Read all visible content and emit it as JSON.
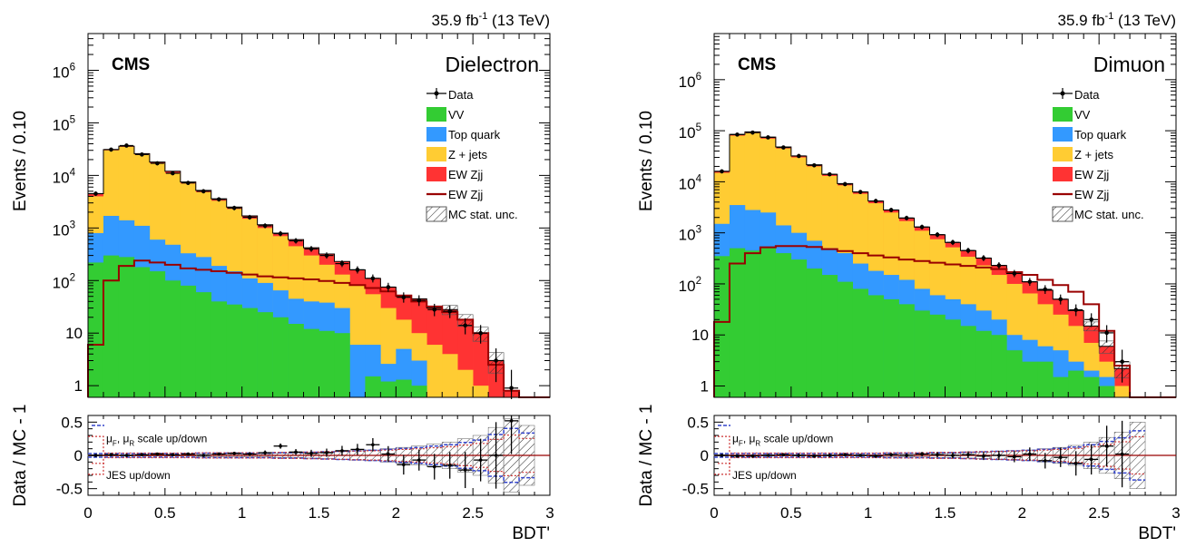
{
  "chart_data": [
    {
      "type": "bar",
      "panel": "left",
      "experiment": "CMS",
      "channel": "Dielectron",
      "lumi": "35.9 fb",
      "lumi_exp": "-1",
      "energy": "(13 TeV)",
      "ylabel": "Events / 0.10",
      "ratio_ylabel": "Data / MC - 1",
      "xlabel": "BDT'",
      "xlim": [
        0,
        3
      ],
      "ylim_log": [
        0.6,
        5000000
      ],
      "ratio_ylim": [
        -0.6,
        0.6
      ],
      "yticks": [
        {
          "v": 1,
          "t": "1"
        },
        {
          "v": 10,
          "t": "10"
        },
        {
          "v": 100,
          "b": "10",
          "e": "2"
        },
        {
          "v": 1000,
          "b": "10",
          "e": "3"
        },
        {
          "v": 10000,
          "b": "10",
          "e": "4"
        },
        {
          "v": 100000,
          "b": "10",
          "e": "5"
        },
        {
          "v": 1000000,
          "b": "10",
          "e": "6"
        }
      ],
      "xticks": [
        "0",
        "0.5",
        "1",
        "1.5",
        "2",
        "2.5",
        "3"
      ],
      "ratio_yticks": [
        "0.5",
        "0",
        "-0.5"
      ],
      "legend": [
        {
          "label": "Data",
          "kind": "data"
        },
        {
          "label": "VV",
          "kind": "fill",
          "color": "#33cc33"
        },
        {
          "label": "Top quark",
          "kind": "fill",
          "color": "#3399ff"
        },
        {
          "label": "Z + jets",
          "kind": "fill",
          "color": "#ffcc33"
        },
        {
          "label": "EW Zjj",
          "kind": "fill",
          "color": "#ff3333"
        },
        {
          "label": "EW Zjj",
          "kind": "line",
          "color": "#990000"
        },
        {
          "label": "MC stat. unc.",
          "kind": "hatch"
        }
      ],
      "ratio_annotations": {
        "scale": "μ",
        "scale_sub1": "F",
        "scale_mid": ", μ",
        "scale_sub2": "R",
        "scale_end": " scale up/down",
        "jes": "JES up/down"
      },
      "bin_edges": [
        0,
        0.1,
        0.2,
        0.3,
        0.4,
        0.5,
        0.6,
        0.7,
        0.8,
        0.9,
        1.0,
        1.1,
        1.2,
        1.3,
        1.4,
        1.5,
        1.6,
        1.7,
        1.8,
        1.9,
        2.0,
        2.1,
        2.2,
        2.3,
        2.4,
        2.5,
        2.6,
        2.7,
        2.8,
        2.9,
        3.0
      ],
      "stack_tops": {
        "VV": [
          220,
          300,
          280,
          180,
          150,
          100,
          80,
          60,
          40,
          35,
          30,
          25,
          20,
          15,
          12,
          11,
          10,
          0,
          1.5,
          1.2,
          1.3,
          1.0,
          0,
          0,
          0,
          0,
          0,
          0,
          0,
          0
        ],
        "Top quark": [
          800,
          1700,
          1400,
          1100,
          600,
          480,
          330,
          280,
          190,
          150,
          110,
          90,
          65,
          45,
          40,
          38,
          30,
          6,
          6,
          2.6,
          5,
          3,
          0,
          0,
          0,
          0,
          0,
          0,
          0,
          0
        ],
        "Z + jets": [
          4000,
          30000,
          35000,
          25000,
          17000,
          11000,
          7000,
          4800,
          3300,
          2300,
          1500,
          1000,
          700,
          450,
          300,
          200,
          130,
          80,
          55,
          30,
          18,
          10,
          6,
          4,
          2,
          1,
          0,
          0,
          0,
          0
        ],
        "EW Zjj": [
          4500,
          31000,
          36000,
          26000,
          18000,
          12000,
          7500,
          5200,
          3600,
          2500,
          1700,
          1150,
          800,
          600,
          420,
          320,
          230,
          160,
          110,
          75,
          50,
          45,
          30,
          28,
          18,
          10,
          3,
          0.8,
          0,
          0
        ]
      },
      "ewzjj_line": [
        6,
        100,
        190,
        240,
        220,
        200,
        170,
        160,
        150,
        140,
        130,
        120,
        115,
        110,
        105,
        98,
        90,
        82,
        72,
        62,
        52,
        40,
        32,
        25,
        18,
        10,
        2.5,
        0.8,
        0,
        0
      ],
      "data": [
        4500,
        31000,
        37000,
        25000,
        17000,
        11000,
        7200,
        5000,
        3500,
        2400,
        1600,
        1100,
        780,
        570,
        400,
        300,
        210,
        160,
        110,
        75,
        48,
        42,
        28,
        26,
        14,
        10,
        3,
        0.9,
        0,
        0
      ],
      "ratio_data": [
        0.0,
        0.01,
        0.0,
        0.01,
        0.02,
        0.01,
        0.02,
        0.0,
        0.02,
        0.03,
        0.02,
        0.04,
        0.14,
        0.05,
        0.03,
        0.04,
        0.07,
        0.09,
        0.16,
        0.02,
        -0.14,
        -0.07,
        -0.17,
        -0.15,
        -0.22,
        -0.07,
        0.0,
        0.52,
        0,
        0
      ],
      "ratio_unc": [
        0.01,
        0.01,
        0.01,
        0.01,
        0.01,
        0.01,
        0.01,
        0.02,
        0.02,
        0.02,
        0.02,
        0.02,
        0.03,
        0.03,
        0.04,
        0.05,
        0.06,
        0.07,
        0.08,
        0.1,
        0.12,
        0.14,
        0.17,
        0.2,
        0.25,
        0.3,
        0.42,
        0.55,
        0.45,
        0
      ]
    },
    {
      "type": "bar",
      "panel": "right",
      "experiment": "CMS",
      "channel": "Dimuon",
      "lumi": "35.9 fb",
      "lumi_exp": "-1",
      "energy": "(13 TeV)",
      "ylabel": "Events / 0.10",
      "ratio_ylabel": "Data / MC - 1",
      "xlabel": "BDT'",
      "xlim": [
        0,
        3
      ],
      "ylim_log": [
        0.6,
        8000000
      ],
      "ratio_ylim": [
        -0.6,
        0.6
      ],
      "yticks": [
        {
          "v": 1,
          "t": "1"
        },
        {
          "v": 10,
          "t": "10"
        },
        {
          "v": 100,
          "b": "10",
          "e": "2"
        },
        {
          "v": 1000,
          "b": "10",
          "e": "3"
        },
        {
          "v": 10000,
          "b": "10",
          "e": "4"
        },
        {
          "v": 100000,
          "b": "10",
          "e": "5"
        },
        {
          "v": 1000000,
          "b": "10",
          "e": "6"
        }
      ],
      "xticks": [
        "0",
        "0.5",
        "1",
        "1.5",
        "2",
        "2.5",
        "3"
      ],
      "ratio_yticks": [
        "0.5",
        "0",
        "-0.5"
      ],
      "legend": [
        {
          "label": "Data",
          "kind": "data"
        },
        {
          "label": "VV",
          "kind": "fill",
          "color": "#33cc33"
        },
        {
          "label": "Top quark",
          "kind": "fill",
          "color": "#3399ff"
        },
        {
          "label": "Z + jets",
          "kind": "fill",
          "color": "#ffcc33"
        },
        {
          "label": "EW Zjj",
          "kind": "fill",
          "color": "#ff3333"
        },
        {
          "label": "EW Zjj",
          "kind": "line",
          "color": "#990000"
        },
        {
          "label": "MC stat. unc.",
          "kind": "hatch"
        }
      ],
      "ratio_annotations": {
        "scale": "μ",
        "scale_sub1": "F",
        "scale_mid": ", μ",
        "scale_sub2": "R",
        "scale_end": " scale up/down",
        "jes": "JES up/down"
      },
      "bin_edges": [
        0,
        0.1,
        0.2,
        0.3,
        0.4,
        0.5,
        0.6,
        0.7,
        0.8,
        0.9,
        1.0,
        1.1,
        1.2,
        1.3,
        1.4,
        1.5,
        1.6,
        1.7,
        1.8,
        1.9,
        2.0,
        2.1,
        2.2,
        2.3,
        2.4,
        2.5,
        2.6,
        2.7,
        2.8,
        2.9,
        3.0
      ],
      "stack_tops": {
        "VV": [
          350,
          500,
          450,
          500,
          400,
          300,
          200,
          150,
          110,
          80,
          60,
          50,
          40,
          30,
          25,
          20,
          15,
          12,
          10,
          5,
          3,
          3,
          1.5,
          2,
          1.5,
          1,
          0,
          0,
          0,
          0
        ],
        "Top quark": [
          1500,
          3500,
          2800,
          2500,
          1400,
          1000,
          700,
          500,
          400,
          250,
          180,
          150,
          120,
          80,
          60,
          50,
          40,
          30,
          20,
          10,
          8,
          6,
          5,
          3,
          2,
          1.5,
          0,
          0,
          0,
          0
        ],
        "Z + jets": [
          15000,
          80000,
          90000,
          70000,
          45000,
          30000,
          20000,
          13000,
          8500,
          5800,
          3800,
          2500,
          1700,
          1100,
          750,
          520,
          340,
          230,
          150,
          100,
          65,
          40,
          25,
          15,
          7,
          3,
          1,
          0,
          0,
          0
        ],
        "EW Zjj": [
          16000,
          85000,
          95000,
          75000,
          48000,
          32000,
          21500,
          14000,
          9200,
          6300,
          4200,
          2800,
          1950,
          1300,
          920,
          650,
          450,
          320,
          230,
          160,
          110,
          75,
          50,
          30,
          15,
          6,
          2.2,
          0,
          0,
          0
        ]
      },
      "ewzjj_line": [
        18,
        250,
        400,
        520,
        550,
        550,
        530,
        480,
        440,
        400,
        360,
        330,
        300,
        280,
        260,
        240,
        225,
        210,
        195,
        170,
        150,
        120,
        95,
        70,
        40,
        12,
        2.5,
        0,
        0,
        0
      ],
      "data": [
        16000,
        84000,
        92000,
        74000,
        47000,
        32000,
        21000,
        14000,
        9000,
        6300,
        4200,
        2800,
        1950,
        1300,
        920,
        650,
        450,
        320,
        230,
        160,
        110,
        78,
        50,
        31,
        20,
        11,
        3,
        0,
        0,
        0
      ],
      "ratio_data": [
        0.0,
        -0.01,
        -0.01,
        0.0,
        0.01,
        0.0,
        -0.01,
        0.0,
        0.01,
        0.0,
        -0.01,
        0.01,
        0.0,
        0.02,
        0.01,
        0.0,
        0.01,
        -0.01,
        0.0,
        -0.02,
        0.02,
        -0.08,
        -0.03,
        -0.12,
        -0.06,
        0.14,
        0.02,
        -0.35,
        0,
        0
      ],
      "ratio_unc": [
        0.01,
        0.01,
        0.01,
        0.01,
        0.01,
        0.01,
        0.01,
        0.01,
        0.01,
        0.01,
        0.01,
        0.02,
        0.02,
        0.02,
        0.03,
        0.03,
        0.04,
        0.05,
        0.06,
        0.07,
        0.08,
        0.1,
        0.12,
        0.15,
        0.2,
        0.27,
        0.35,
        0.5,
        0,
        0
      ]
    }
  ]
}
